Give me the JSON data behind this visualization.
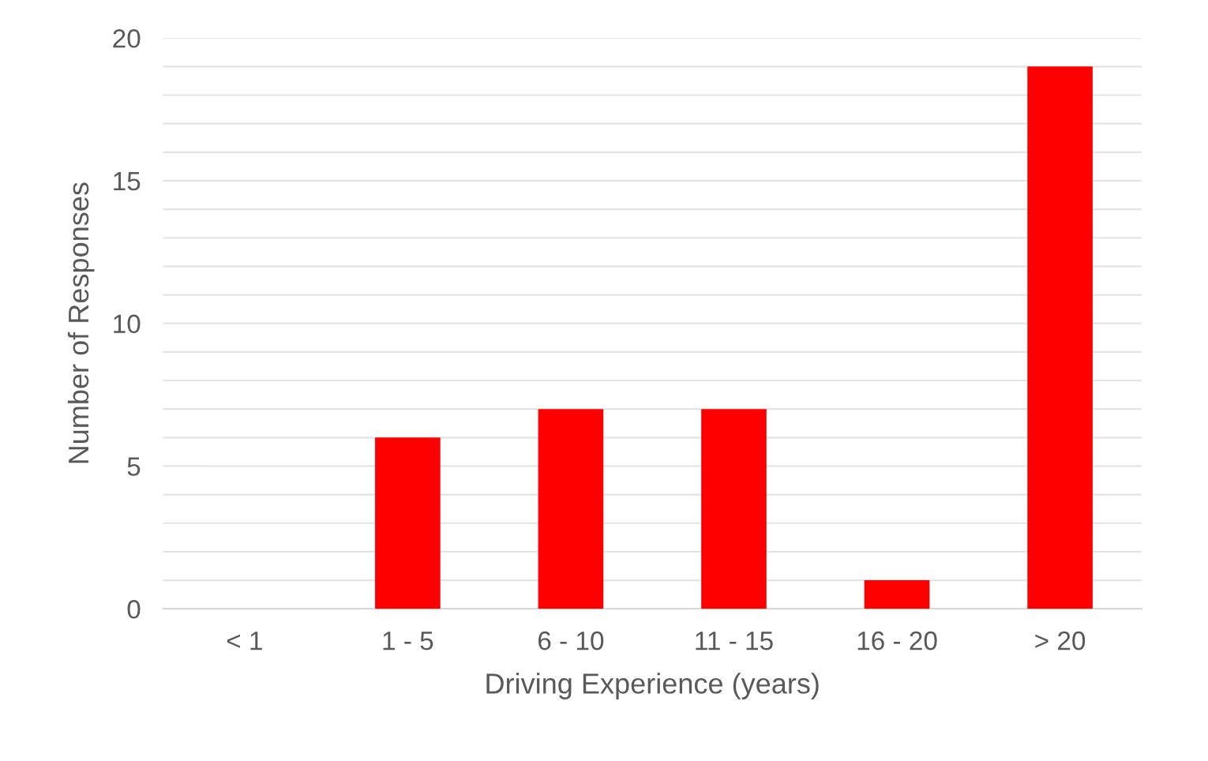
{
  "chart_data": {
    "type": "bar",
    "xlabel": "Driving Experience (years)",
    "ylabel": "Number of Responses",
    "categories": [
      "< 1",
      "1 - 5",
      "6 - 10",
      "11 - 15",
      "16 - 20",
      "> 20"
    ],
    "values": [
      0,
      6,
      7,
      7,
      1,
      19
    ],
    "color": "#ff0000",
    "ylim": [
      0,
      20
    ],
    "yticks": [
      0,
      {
        "value": 1,
        "label": null
      },
      {
        "value": 2,
        "label": null
      },
      {
        "value": 3,
        "label": null
      },
      {
        "value": 4,
        "label": null
      },
      5,
      {
        "value": 6,
        "label": null
      },
      {
        "value": 7,
        "label": null
      },
      {
        "value": 8,
        "label": null
      },
      {
        "value": 9,
        "label": null
      },
      10,
      {
        "value": 11,
        "label": null
      },
      {
        "value": 12,
        "label": null
      },
      {
        "value": 13,
        "label": null
      },
      {
        "value": 14,
        "label": null
      },
      15,
      {
        "value": 16,
        "label": null
      },
      {
        "value": 17,
        "label": null
      },
      {
        "value": 18,
        "label": null
      },
      {
        "value": 19,
        "label": null
      },
      20
    ],
    "grid": "y"
  }
}
